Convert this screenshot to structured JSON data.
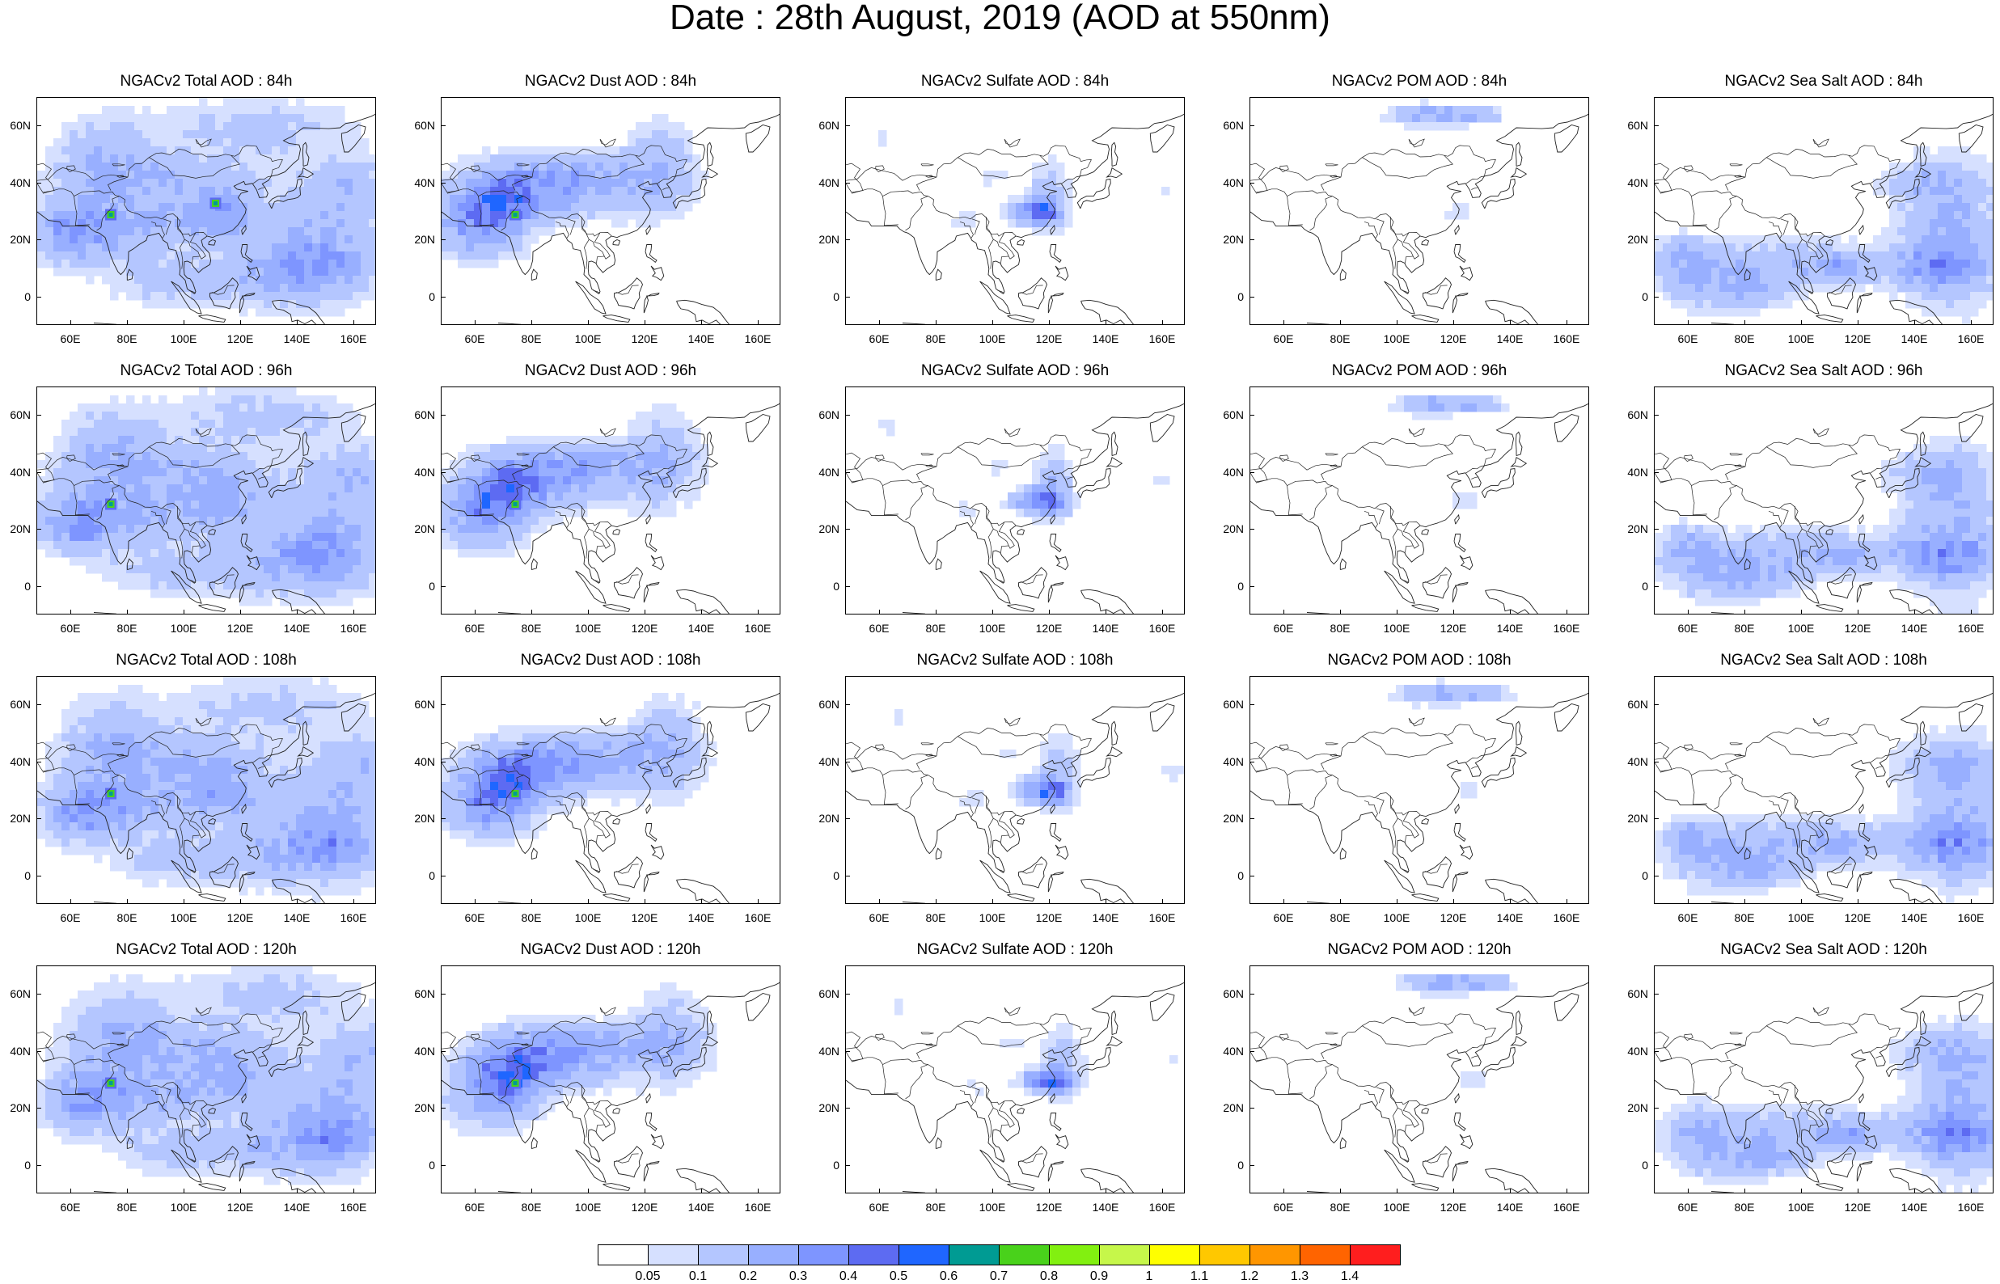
{
  "title": "Date : 28th August, 2019 (AOD at 550nm)",
  "map": {
    "lon_labels": [
      "60E",
      "80E",
      "100E",
      "120E",
      "140E",
      "160E"
    ],
    "lon_values": [
      60,
      80,
      100,
      120,
      140,
      160
    ],
    "lat_labels": [
      "60N",
      "40N",
      "20N",
      "0"
    ],
    "lat_values": [
      60,
      40,
      20,
      0
    ],
    "lon_range": [
      48,
      168
    ],
    "lat_range": [
      -10,
      70
    ]
  },
  "panels": [
    {
      "title": "NGACv2 Total AOD : 84h",
      "variable": "total",
      "forecast_hour": 84
    },
    {
      "title": "NGACv2 Dust AOD : 84h",
      "variable": "dust",
      "forecast_hour": 84
    },
    {
      "title": "NGACv2 Sulfate AOD : 84h",
      "variable": "sulfate",
      "forecast_hour": 84
    },
    {
      "title": "NGACv2 POM AOD : 84h",
      "variable": "pom",
      "forecast_hour": 84
    },
    {
      "title": "NGACv2 Sea Salt AOD : 84h",
      "variable": "seasalt",
      "forecast_hour": 84
    },
    {
      "title": "NGACv2 Total AOD : 96h",
      "variable": "total",
      "forecast_hour": 96
    },
    {
      "title": "NGACv2 Dust AOD : 96h",
      "variable": "dust",
      "forecast_hour": 96
    },
    {
      "title": "NGACv2 Sulfate AOD : 96h",
      "variable": "sulfate",
      "forecast_hour": 96
    },
    {
      "title": "NGACv2 POM AOD : 96h",
      "variable": "pom",
      "forecast_hour": 96
    },
    {
      "title": "NGACv2 Sea Salt AOD : 96h",
      "variable": "seasalt",
      "forecast_hour": 96
    },
    {
      "title": "NGACv2 Total AOD : 108h",
      "variable": "total",
      "forecast_hour": 108
    },
    {
      "title": "NGACv2 Dust AOD : 108h",
      "variable": "dust",
      "forecast_hour": 108
    },
    {
      "title": "NGACv2 Sulfate AOD : 108h",
      "variable": "sulfate",
      "forecast_hour": 108
    },
    {
      "title": "NGACv2 POM AOD : 108h",
      "variable": "pom",
      "forecast_hour": 108
    },
    {
      "title": "NGACv2 Sea Salt AOD : 108h",
      "variable": "seasalt",
      "forecast_hour": 108
    },
    {
      "title": "NGACv2 Total AOD : 120h",
      "variable": "total",
      "forecast_hour": 120
    },
    {
      "title": "NGACv2 Dust AOD : 120h",
      "variable": "dust",
      "forecast_hour": 120
    },
    {
      "title": "NGACv2 Sulfate AOD : 120h",
      "variable": "sulfate",
      "forecast_hour": 120
    },
    {
      "title": "NGACv2 POM AOD : 120h",
      "variable": "pom",
      "forecast_hour": 120
    },
    {
      "title": "NGACv2 Sea Salt  AOD : 120h",
      "variable": "seasalt",
      "forecast_hour": 120
    }
  ],
  "colorbar": {
    "labels": [
      "0.05",
      "0.1",
      "0.2",
      "0.3",
      "0.4",
      "0.5",
      "0.6",
      "0.7",
      "0.8",
      "0.9",
      "1",
      "1.1",
      "1.2",
      "1.3",
      "1.4"
    ],
    "colors": [
      "#ffffff",
      "#d6e0ff",
      "#b4c6ff",
      "#98afff",
      "#7e95ff",
      "#5d6bf2",
      "#1f66ff",
      "#009b93",
      "#49d21b",
      "#82f010",
      "#c6f74a",
      "#ffff00",
      "#ffc800",
      "#ff9600",
      "#ff6400",
      "#ff1e1e"
    ]
  }
}
